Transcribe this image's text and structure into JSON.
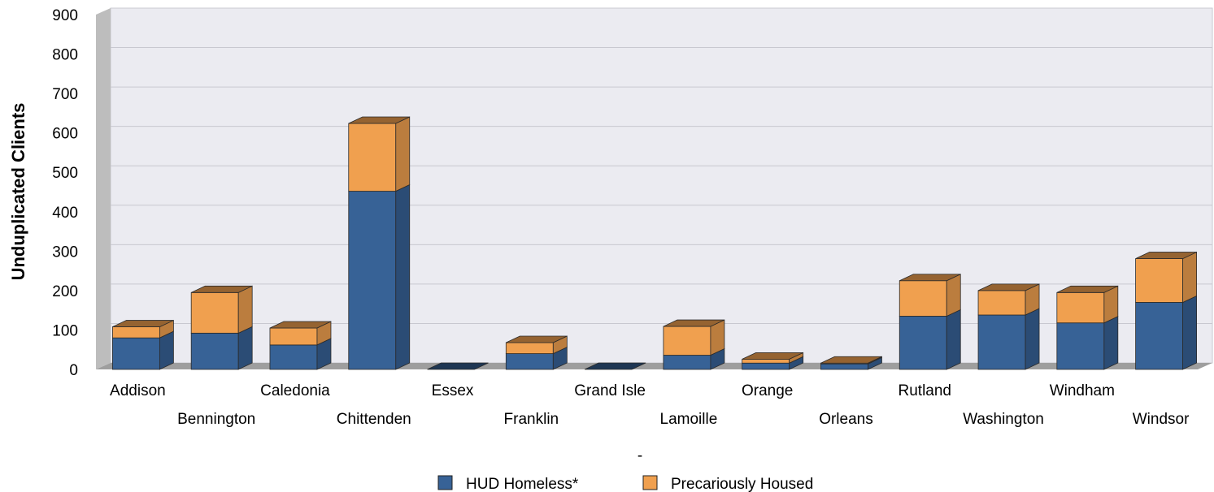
{
  "chart_data": {
    "type": "bar",
    "stacked": true,
    "three_d": true,
    "categories": [
      "Addison",
      "Bennington",
      "Caledonia",
      "Chittenden",
      "Essex",
      "Franklin",
      "Grand Isle",
      "Lamoille",
      "Orange",
      "Orleans",
      "Rutland",
      "Washington",
      "Windham",
      "Windsor"
    ],
    "series": [
      {
        "name": "HUD Homeless*",
        "color": "#376296",
        "values": [
          80,
          92,
          62,
          452,
          0,
          40,
          0,
          36,
          16,
          14,
          135,
          138,
          118,
          170
        ]
      },
      {
        "name": "Precariously Housed",
        "color": "#f0a04f",
        "values": [
          28,
          103,
          43,
          172,
          0,
          28,
          0,
          73,
          10,
          2,
          90,
          62,
          77,
          111
        ]
      }
    ],
    "title": "",
    "xlabel": "-",
    "ylabel": "Unduplicated Clients",
    "ylim": [
      0,
      900
    ],
    "yticks": [
      0,
      100,
      200,
      300,
      400,
      500,
      600,
      700,
      800,
      900
    ],
    "grid": true,
    "legend_position": "bottom-center"
  }
}
